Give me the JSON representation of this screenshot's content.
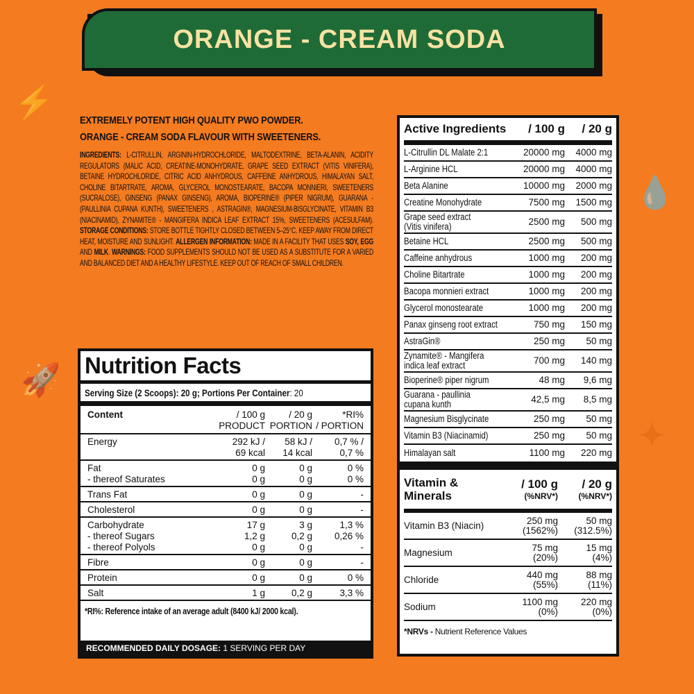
{
  "colors": {
    "background": "#f47b20",
    "banner": "#1f6b37",
    "banner_text": "#f6e2a2"
  },
  "banner_title": "ORANGE - CREAM SODA",
  "headline": [
    "EXTREMELY POTENT HIGH QUALITY PWO POWDER.",
    "ORANGE - CREAM SODA FLAVOUR WITH SWEETENERS."
  ],
  "ingredients": {
    "label": "INGREDIENTS:",
    "text": "L-CITRULLIN, ARGININ-HYDROCHLORIDE, MALTODEXTRINE, BETA-ALANIN, ACIDITY REGULATORS (MALIC ACID, CREATINE-MONOHYDRATE, GRAPE SEED EXTRACT (VITIS VINIFERA), BETAINE HYDROCHLORIDE, CITRIC ACID ANHYDROUS, CAFFEINE ANHYDROUS, HIMALAYAN SALT, CHOLINE BITARTRATE, AROMA, GLYCEROL MONOSTEARATE, BACOPA MONNIERI, SWEETENERS (SUCRALOSE), GINSENG (PANAX GINSENG), AROMA, BIOPERINE® (PIPER NIGRUM), GUARANA - (PAULLINIA CUPANA KUNTH), SWEETENERS , ASTRAGIN®, MAGNESIUM-BISGLYCINATE, VITAMIN B3 (NIACINAMID), ZYNAMITE® - MANGIFERA INDICA LEAF EXTRACT 15%, SWEETENERS (ACESULFAM).",
    "storage_label": "STORAGE CONDITIONS:",
    "storage_text": "STORE BOTTLE TIGHTLY CLOSED BETWEEN 5–25°C. KEEP AWAY FROM DIRECT HEAT, MOISTURE AND SUNLIGHT.",
    "allergen_label": "ALLERGEN INFORMATION:",
    "allergen_text1": "MADE IN A FACILITY THAT USES",
    "soy": "SOY,",
    "egg": "EGG",
    "and": "AND",
    "milk": "MILK",
    "warnings_label": "WARNINGS:",
    "warnings_text": "FOOD SUPPLEMENTS SHOULD NOT BE USED AS A SUBSTITUTE FOR A VARIED AND BALANCED DIET AND A HEALTHY LIFESTYLE. KEEP OUT OF REACH OF SMALL CHILDREN."
  },
  "nutrition": {
    "title": "Nutrition Facts",
    "serving_label": "Serving Size (2 Scoops)",
    "serving_value": ": 20 g; Portions Per Container",
    "portions_value": ": 20",
    "header": [
      "Content",
      "/ 100 g\nPRODUCT",
      "/ 20 g\nPORTION",
      "*RI%\n/ PORTION"
    ],
    "rows": [
      [
        [
          "Energy",
          "292 kJ /",
          "58 kJ /",
          "0,7 % /"
        ],
        [
          "",
          "69 kcal",
          "14 kcal",
          "0,7 %"
        ]
      ],
      [
        [
          "Fat",
          "0 g",
          "0 g",
          "0 %"
        ],
        [
          "- thereof Saturates",
          "0 g",
          "0 g",
          "0 %"
        ]
      ],
      [
        [
          "Trans Fat",
          "0 g",
          "0 g",
          "-"
        ]
      ],
      [
        [
          "Cholesterol",
          "0 g",
          "0 g",
          "-"
        ]
      ],
      [
        [
          "Carbohydrate",
          "17 g",
          "3 g",
          "1,3 %"
        ],
        [
          "- thereof Sugars",
          "1,2 g",
          "0,2 g",
          "0,26 %"
        ],
        [
          "- thereof Polyols",
          "0 g",
          "0 g",
          "-"
        ]
      ],
      [
        [
          "Fibre",
          "0 g",
          "0 g",
          "-"
        ]
      ],
      [
        [
          "Protein",
          "0 g",
          "0 g",
          "0 %"
        ]
      ],
      [
        [
          "Salt",
          "1 g",
          "0,2 g",
          "3,3 %"
        ]
      ]
    ],
    "footnote": "*RI%: Reference intake of an average adult (8400 kJ/ 2000 kcal).",
    "dosage_label": "RECOMMENDED DAILY DOSAGE:",
    "dosage_value": "1 SERVING PER DAY"
  },
  "active": {
    "header": [
      "Active Ingredients",
      "/ 100 g",
      "/ 20 g"
    ],
    "rows": [
      [
        "L-Citrullin DL Malate 2:1",
        "20000 mg",
        "4000 mg"
      ],
      [
        "L-Arginine HCL",
        "20000 mg",
        "4000 mg"
      ],
      [
        "Beta Alanine",
        "10000 mg",
        "2000 mg"
      ],
      [
        "Creatine Monohydrate",
        "7500 mg",
        "1500 mg"
      ],
      [
        "Grape seed extract\n(Vitis vinifera)",
        "2500 mg",
        "500 mg"
      ],
      [
        "Betaine HCL",
        "2500 mg",
        "500 mg"
      ],
      [
        "Caffeine anhydrous",
        "1000 mg",
        "200 mg"
      ],
      [
        "Choline Bitartrate",
        "1000 mg",
        "200 mg"
      ],
      [
        "Bacopa monnieri extract",
        "1000 mg",
        "200 mg"
      ],
      [
        "Glycerol monostearate",
        "1000 mg",
        "200 mg"
      ],
      [
        "Panax ginseng root extract",
        "750 mg",
        "150 mg"
      ],
      [
        "AstraGin®",
        "250 mg",
        "50 mg"
      ],
      [
        "Zynamite® - Mangifera\nindica leaf extract",
        "700 mg",
        "140 mg"
      ],
      [
        "Bioperine® piper nigrum",
        "48 mg",
        "9,6 mg"
      ],
      [
        "Guarana - paullinia\ncupana kunth",
        "42,5 mg",
        "8,5 mg"
      ],
      [
        "Magnesium Bisglycinate",
        "250 mg",
        "50 mg"
      ],
      [
        "Vitamin B3 (Niacinamid)",
        "250 mg",
        "50 mg"
      ],
      [
        "Himalayan salt",
        "1100 mg",
        "220 mg"
      ]
    ]
  },
  "vitamins": {
    "header": [
      "Vitamin &\nMinerals",
      "/ 100 g",
      "(%NRV*)",
      "/ 20 g",
      "(%NRV*)"
    ],
    "rows": [
      [
        "Vitamin B3 (Niacin)",
        "250 mg\n(1562%)",
        "50 mg\n(312.5%)"
      ],
      [
        "Magnesium",
        "75 mg\n(20%)",
        "15 mg\n(4%)"
      ],
      [
        "Chloride",
        "440 mg\n(55%)",
        "88 mg\n(11%)"
      ],
      [
        "Sodium",
        "1100 mg\n(0%)",
        "220 mg\n(0%)"
      ]
    ],
    "footnote_label": "*NRVs -",
    "footnote_text": "Nutrient Reference Values"
  }
}
